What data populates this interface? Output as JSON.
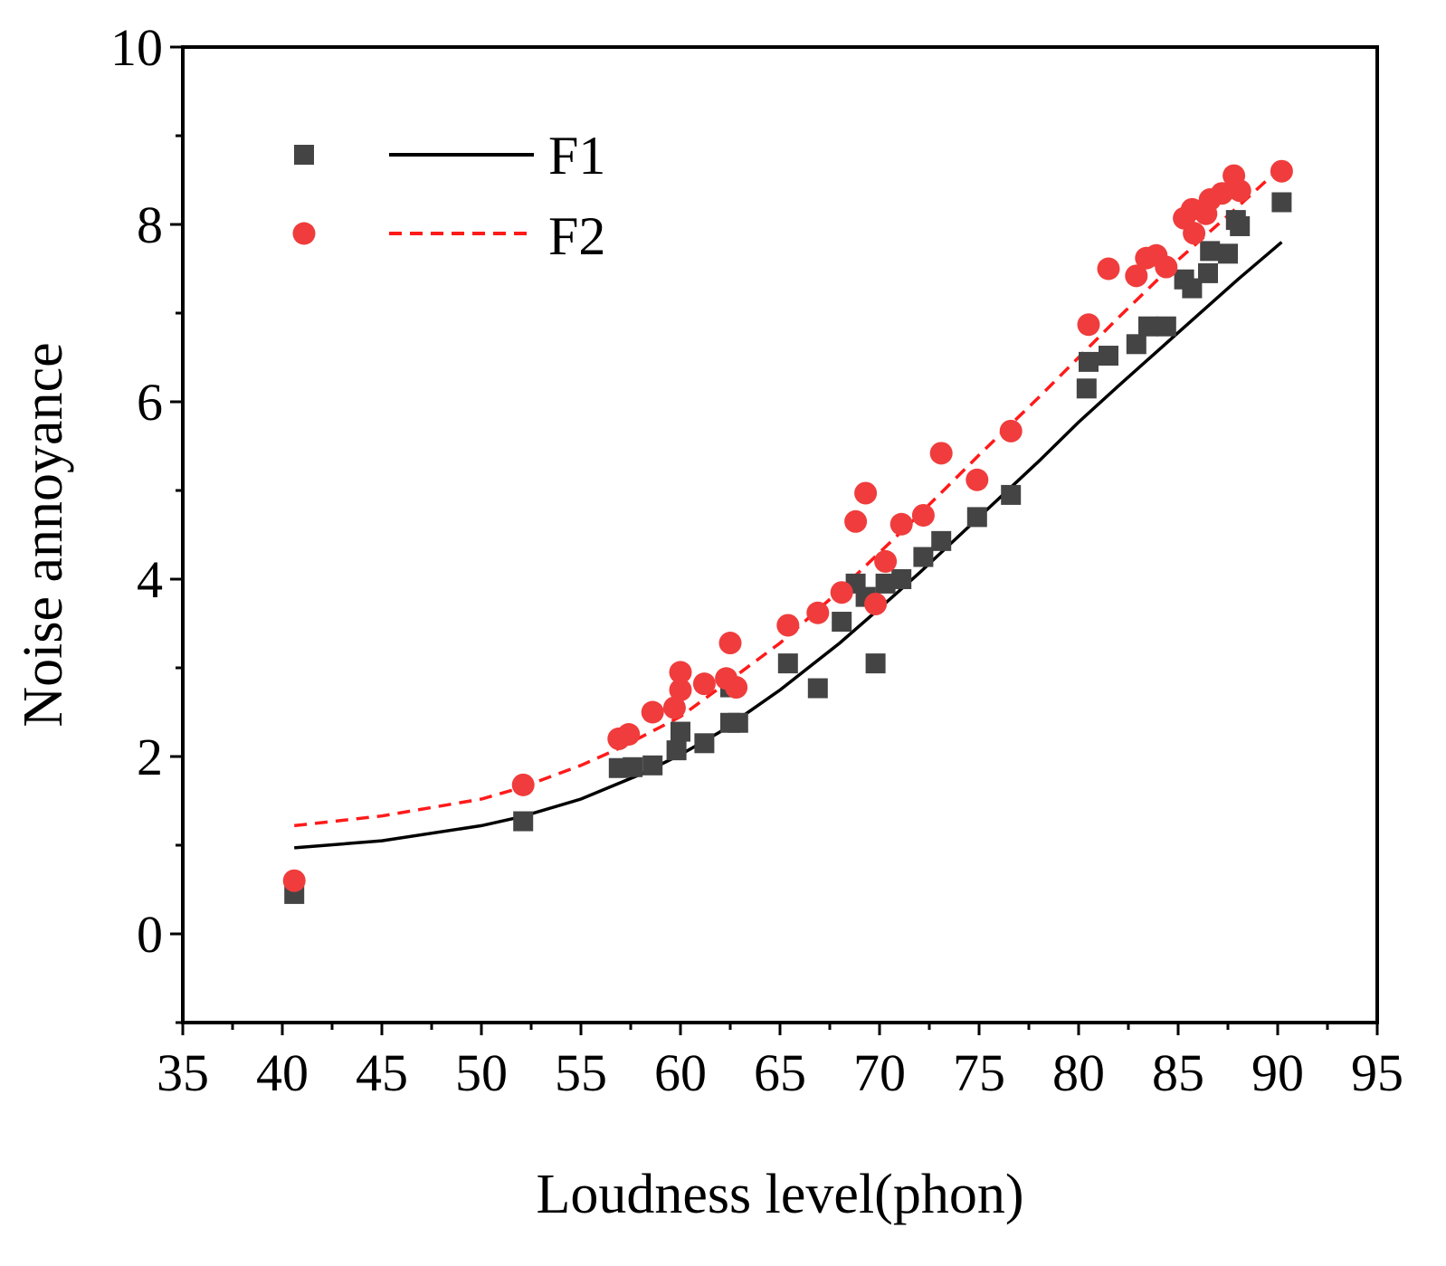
{
  "chart_data": {
    "type": "scatter",
    "title": "",
    "xlabel": "Loudness level(phon)",
    "ylabel": "Noise annoyance",
    "xlim": [
      35,
      95
    ],
    "ylim": [
      -1,
      10
    ],
    "xticks": [
      35,
      40,
      45,
      50,
      55,
      60,
      65,
      70,
      75,
      80,
      85,
      90,
      95
    ],
    "yticks": [
      0,
      2,
      4,
      6,
      8,
      10
    ],
    "legend_position": "top-left",
    "colors": {
      "F1": "#444444",
      "F1_line": "#000000",
      "F2": "#f03c3c",
      "F2_line": "#ff1a1a"
    },
    "series": [
      {
        "name": "F1",
        "marker": "square",
        "points": [
          [
            40.6,
            0.45
          ],
          [
            52.1,
            1.27
          ],
          [
            56.9,
            1.87
          ],
          [
            57.6,
            1.88
          ],
          [
            58.6,
            1.9
          ],
          [
            59.8,
            2.07
          ],
          [
            60.0,
            2.28
          ],
          [
            61.2,
            2.15
          ],
          [
            62.5,
            2.38
          ],
          [
            62.5,
            2.78
          ],
          [
            62.9,
            2.38
          ],
          [
            65.4,
            3.05
          ],
          [
            66.9,
            2.77
          ],
          [
            68.1,
            3.52
          ],
          [
            68.8,
            3.95
          ],
          [
            69.3,
            3.8
          ],
          [
            69.8,
            3.05
          ],
          [
            70.3,
            3.95
          ],
          [
            71.1,
            4.0
          ],
          [
            72.2,
            4.25
          ],
          [
            73.1,
            4.43
          ],
          [
            74.9,
            4.7
          ],
          [
            76.6,
            4.95
          ],
          [
            80.4,
            6.15
          ],
          [
            80.5,
            6.45
          ],
          [
            81.5,
            6.52
          ],
          [
            82.9,
            6.65
          ],
          [
            83.5,
            6.85
          ],
          [
            84.4,
            6.85
          ],
          [
            85.3,
            7.38
          ],
          [
            85.7,
            7.28
          ],
          [
            86.5,
            7.45
          ],
          [
            86.6,
            7.7
          ],
          [
            87.5,
            7.67
          ],
          [
            87.9,
            8.05
          ],
          [
            88.1,
            7.98
          ],
          [
            90.2,
            8.25
          ]
        ]
      },
      {
        "name": "F2",
        "marker": "circle",
        "points": [
          [
            40.6,
            0.6
          ],
          [
            52.1,
            1.68
          ],
          [
            56.9,
            2.2
          ],
          [
            57.4,
            2.25
          ],
          [
            58.6,
            2.5
          ],
          [
            59.7,
            2.55
          ],
          [
            60.0,
            2.75
          ],
          [
            60.0,
            2.95
          ],
          [
            61.2,
            2.82
          ],
          [
            62.3,
            2.88
          ],
          [
            62.5,
            3.28
          ],
          [
            62.8,
            2.78
          ],
          [
            65.4,
            3.48
          ],
          [
            66.9,
            3.62
          ],
          [
            68.1,
            3.85
          ],
          [
            68.8,
            4.65
          ],
          [
            69.3,
            4.97
          ],
          [
            69.8,
            3.72
          ],
          [
            70.3,
            4.2
          ],
          [
            71.1,
            4.62
          ],
          [
            72.2,
            4.72
          ],
          [
            73.1,
            5.42
          ],
          [
            74.9,
            5.12
          ],
          [
            76.6,
            5.67
          ],
          [
            80.5,
            6.87
          ],
          [
            81.5,
            7.5
          ],
          [
            82.9,
            7.42
          ],
          [
            83.4,
            7.62
          ],
          [
            83.9,
            7.65
          ],
          [
            84.4,
            7.52
          ],
          [
            85.3,
            8.07
          ],
          [
            85.7,
            8.17
          ],
          [
            85.8,
            7.9
          ],
          [
            86.4,
            8.12
          ],
          [
            86.6,
            8.28
          ],
          [
            87.2,
            8.35
          ],
          [
            87.8,
            8.55
          ],
          [
            88.1,
            8.38
          ],
          [
            90.2,
            8.6
          ]
        ]
      }
    ],
    "fits": [
      {
        "name": "F1",
        "style": "solid",
        "x": [
          40.6,
          45,
          50,
          52,
          55,
          58,
          60,
          62,
          65,
          68,
          70,
          72,
          75,
          78,
          80,
          82,
          85,
          88,
          90.2
        ],
        "y": [
          0.97,
          1.05,
          1.22,
          1.32,
          1.52,
          1.8,
          2.02,
          2.28,
          2.75,
          3.28,
          3.67,
          4.07,
          4.7,
          5.33,
          5.77,
          6.18,
          6.78,
          7.38,
          7.8
        ]
      },
      {
        "name": "F2",
        "style": "dashed",
        "x": [
          40.6,
          45,
          50,
          52,
          55,
          57,
          60,
          62,
          65,
          68,
          70,
          72,
          75,
          78,
          80,
          82,
          85,
          88,
          90.2
        ],
        "y": [
          1.22,
          1.33,
          1.52,
          1.65,
          1.9,
          2.1,
          2.45,
          2.78,
          3.28,
          3.87,
          4.3,
          4.73,
          5.4,
          6.05,
          6.5,
          6.95,
          7.6,
          8.2,
          8.65
        ]
      }
    ],
    "legend": [
      {
        "series": "F1",
        "label": "F1"
      },
      {
        "series": "F2",
        "label": "F2"
      }
    ]
  }
}
